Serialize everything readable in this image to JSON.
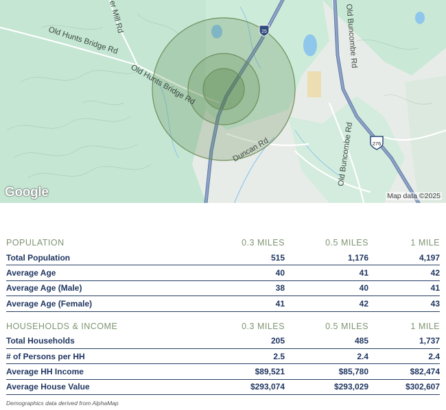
{
  "map": {
    "roads": [
      {
        "label": "Old Hunts Bridge Rd"
      },
      {
        "label": "Old Hunts Bridge Rd"
      },
      {
        "label": "Duncan Rd"
      },
      {
        "label": "Old Buncombe Rd"
      },
      {
        "label": "Old Buncombe Rd"
      },
      {
        "label": "er Mill Rd"
      }
    ],
    "shields": [
      "25",
      "276"
    ],
    "logo": "Google",
    "attribution": "Map data ©2025",
    "colors": {
      "land": "#e9ede9",
      "forest": "#bfe4cf",
      "water": "#8fc6ec",
      "highway": "#7e92b5",
      "radius": "#6f8e5c"
    }
  },
  "sections": [
    {
      "title": "POPULATION",
      "columns": [
        "0.3 MILES",
        "0.5 MILES",
        "1 MILE"
      ],
      "rows": [
        {
          "label": "Total Population",
          "values": [
            "515",
            "1,176",
            "4,197"
          ]
        },
        {
          "label": "Average Age",
          "values": [
            "40",
            "41",
            "42"
          ]
        },
        {
          "label": "Average Age (Male)",
          "values": [
            "38",
            "40",
            "41"
          ]
        },
        {
          "label": "Average Age (Female)",
          "values": [
            "41",
            "42",
            "43"
          ]
        }
      ]
    },
    {
      "title": "HOUSEHOLDS & INCOME",
      "columns": [
        "0.3 MILES",
        "0.5 MILES",
        "1 MILE"
      ],
      "rows": [
        {
          "label": "Total Households",
          "values": [
            "205",
            "485",
            "1,737"
          ]
        },
        {
          "label": "# of Persons per HH",
          "values": [
            "2.5",
            "2.4",
            "2.4"
          ]
        },
        {
          "label": "Average HH Income",
          "values": [
            "$89,521",
            "$85,780",
            "$82,474"
          ]
        },
        {
          "label": "Average House Value",
          "values": [
            "$293,074",
            "$293,029",
            "$302,607"
          ]
        }
      ]
    }
  ],
  "footnote": "Demographics data derived from AlphaMap"
}
